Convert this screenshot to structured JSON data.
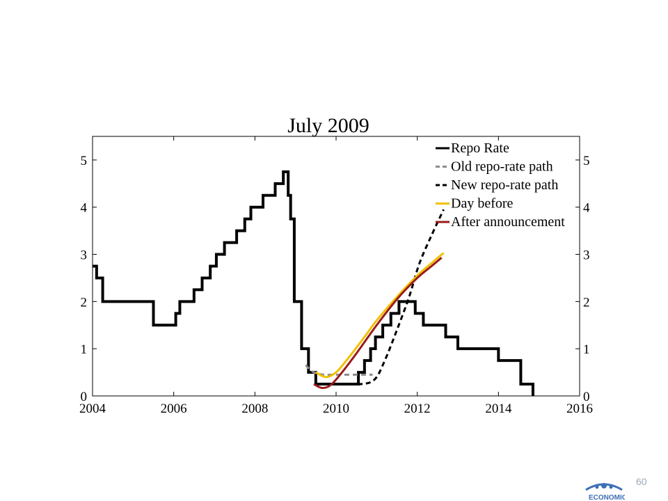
{
  "page": {
    "number": "60",
    "logo": {
      "name": "central-bank-seal",
      "fragment_text": "ECONOMIC",
      "color": "#3d6fb4"
    }
  },
  "chart_data": {
    "type": "line",
    "title": "July 2009",
    "xlabel": "",
    "ylabel": "",
    "xlim": [
      2004,
      2016
    ],
    "ylim": [
      0,
      5.5
    ],
    "x_ticks": [
      2004,
      2006,
      2008,
      2010,
      2012,
      2014,
      2016
    ],
    "x_tick_labels": [
      "2004",
      "2006",
      "2008",
      "2010",
      "2012",
      "2014",
      "2016"
    ],
    "y_ticks": [
      0,
      1,
      2,
      3,
      4,
      5
    ],
    "y_tick_labels": [
      "0",
      "1",
      "2",
      "3",
      "4",
      "5"
    ],
    "y_axis_right": true,
    "grid": false,
    "legend_position": "top-right",
    "series": [
      {
        "name": "Repo Rate",
        "style": "step",
        "color": "#000000",
        "dash": "solid",
        "points": [
          [
            2004.0,
            2.75
          ],
          [
            2004.1,
            2.5
          ],
          [
            2004.25,
            2.0
          ],
          [
            2005.5,
            1.5
          ],
          [
            2006.05,
            1.75
          ],
          [
            2006.15,
            2.0
          ],
          [
            2006.5,
            2.25
          ],
          [
            2006.7,
            2.5
          ],
          [
            2006.9,
            2.75
          ],
          [
            2007.05,
            3.0
          ],
          [
            2007.25,
            3.25
          ],
          [
            2007.55,
            3.5
          ],
          [
            2007.75,
            3.75
          ],
          [
            2007.9,
            4.0
          ],
          [
            2008.2,
            4.25
          ],
          [
            2008.5,
            4.5
          ],
          [
            2008.7,
            4.75
          ],
          [
            2008.82,
            4.25
          ],
          [
            2008.88,
            3.75
          ],
          [
            2008.97,
            2.0
          ],
          [
            2009.15,
            1.0
          ],
          [
            2009.32,
            0.5
          ],
          [
            2009.5,
            0.25
          ],
          [
            2010.55,
            0.5
          ],
          [
            2010.7,
            0.75
          ],
          [
            2010.85,
            1.0
          ],
          [
            2010.97,
            1.25
          ],
          [
            2011.15,
            1.5
          ],
          [
            2011.35,
            1.75
          ],
          [
            2011.55,
            2.0
          ],
          [
            2011.95,
            1.75
          ],
          [
            2012.15,
            1.5
          ],
          [
            2012.7,
            1.25
          ],
          [
            2013.0,
            1.0
          ],
          [
            2014.0,
            0.75
          ],
          [
            2014.55,
            0.25
          ],
          [
            2014.85,
            0.0
          ]
        ]
      },
      {
        "name": "Old repo-rate path",
        "style": "line",
        "color": "#8c8c8c",
        "dash": "dashed",
        "points": [
          [
            2009.25,
            0.65
          ],
          [
            2009.45,
            0.5
          ],
          [
            2009.7,
            0.45
          ],
          [
            2010.0,
            0.45
          ],
          [
            2010.5,
            0.45
          ],
          [
            2010.9,
            0.45
          ]
        ]
      },
      {
        "name": "New repo-rate path",
        "style": "line",
        "color": "#000000",
        "dash": "dashed",
        "points": [
          [
            2009.5,
            0.25
          ],
          [
            2010.0,
            0.25
          ],
          [
            2010.6,
            0.25
          ],
          [
            2010.95,
            0.35
          ],
          [
            2011.2,
            0.75
          ],
          [
            2011.5,
            1.4
          ],
          [
            2011.8,
            2.1
          ],
          [
            2012.05,
            2.8
          ],
          [
            2012.35,
            3.4
          ],
          [
            2012.65,
            3.95
          ]
        ]
      },
      {
        "name": "Day before",
        "style": "line",
        "color": "#f0c000",
        "dash": "solid",
        "points": [
          [
            2009.5,
            0.5
          ],
          [
            2009.75,
            0.4
          ],
          [
            2010.0,
            0.5
          ],
          [
            2010.3,
            0.8
          ],
          [
            2010.7,
            1.25
          ],
          [
            2011.0,
            1.6
          ],
          [
            2011.5,
            2.1
          ],
          [
            2012.0,
            2.55
          ],
          [
            2012.4,
            2.85
          ],
          [
            2012.65,
            3.03
          ]
        ]
      },
      {
        "name": "After announcement",
        "style": "line",
        "color": "#9b1b1b",
        "dash": "solid",
        "points": [
          [
            2009.45,
            0.25
          ],
          [
            2009.65,
            0.17
          ],
          [
            2009.85,
            0.22
          ],
          [
            2010.1,
            0.45
          ],
          [
            2010.5,
            0.9
          ],
          [
            2011.0,
            1.5
          ],
          [
            2011.5,
            2.05
          ],
          [
            2012.0,
            2.5
          ],
          [
            2012.35,
            2.75
          ],
          [
            2012.6,
            2.93
          ]
        ]
      }
    ]
  }
}
